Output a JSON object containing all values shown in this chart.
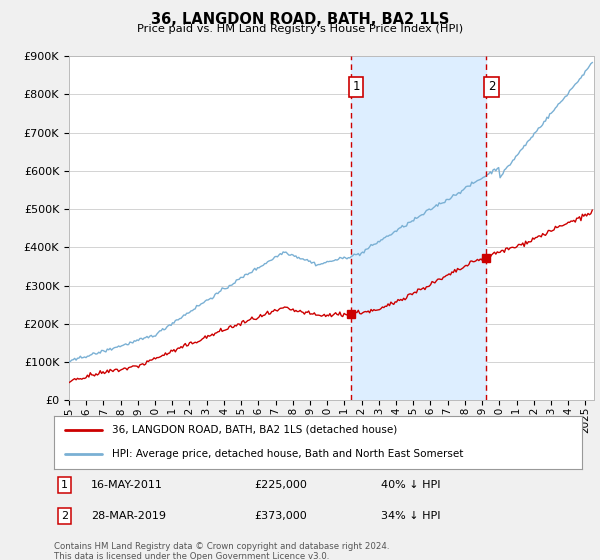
{
  "title": "36, LANGDON ROAD, BATH, BA2 1LS",
  "subtitle": "Price paid vs. HM Land Registry's House Price Index (HPI)",
  "ylabel_ticks": [
    "£0",
    "£100K",
    "£200K",
    "£300K",
    "£400K",
    "£500K",
    "£600K",
    "£700K",
    "£800K",
    "£900K"
  ],
  "ylim": [
    0,
    900000
  ],
  "xlim_start": 1995.0,
  "xlim_end": 2025.5,
  "transaction1_date": "16-MAY-2011",
  "transaction1_price": 225000,
  "transaction1_hpi_pct": "40%",
  "transaction1_year": 2011.37,
  "transaction2_date": "28-MAR-2019",
  "transaction2_price": 373000,
  "transaction2_hpi_pct": "34%",
  "transaction2_year": 2019.24,
  "vline_color": "#cc0000",
  "shade_color": "#ddeeff",
  "hpi_line_color": "#7ab0d4",
  "price_line_color": "#cc0000",
  "background_color": "#f0f0f0",
  "plot_bg_color": "#ffffff",
  "footer": "Contains HM Land Registry data © Crown copyright and database right 2024.\nThis data is licensed under the Open Government Licence v3.0.",
  "legend1": "36, LANGDON ROAD, BATH, BA2 1LS (detached house)",
  "legend2": "HPI: Average price, detached house, Bath and North East Somerset"
}
